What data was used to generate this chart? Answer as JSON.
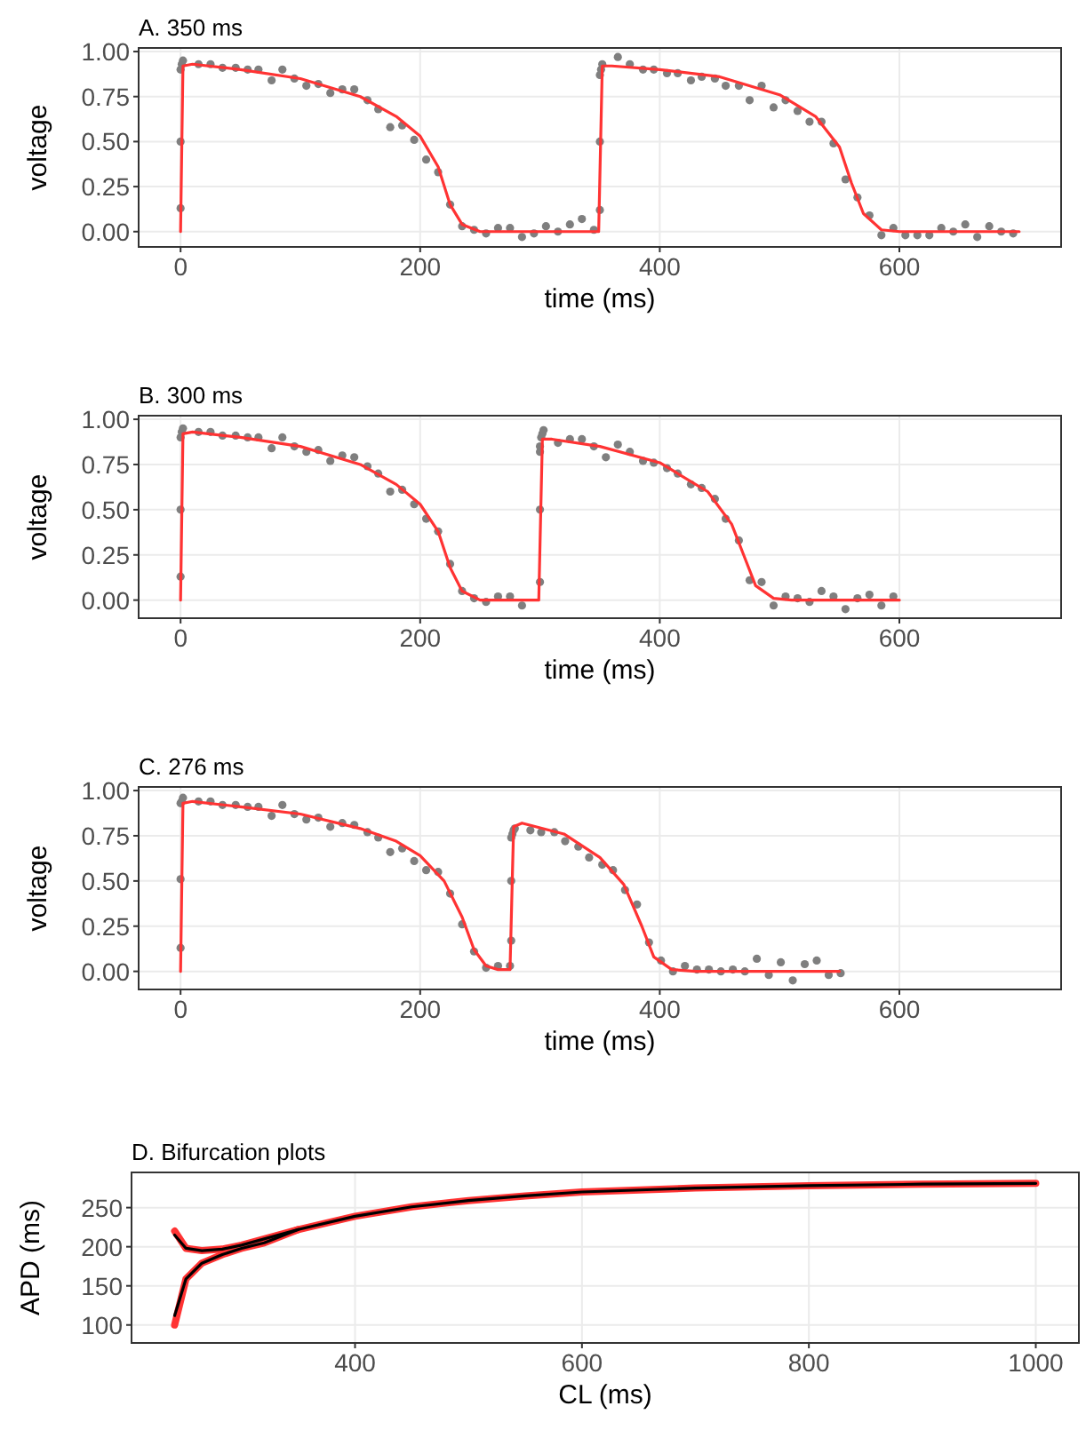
{
  "chart_data": [
    {
      "type": "scatter",
      "title": "A. 350 ms",
      "xlabel": "time (ms)",
      "ylabel": "voltage",
      "xlim": [
        -35,
        735
      ],
      "ylim": [
        -0.085,
        1.02
      ],
      "xticks": [
        0,
        200,
        400,
        600
      ],
      "yticks": [
        {
          "value": 0,
          "label": "0.00"
        },
        {
          "value": 0.25,
          "label": "0.25"
        },
        {
          "value": 0.5,
          "label": "0.50"
        },
        {
          "value": 0.75,
          "label": "0.75"
        },
        {
          "value": 1,
          "label": "1.00"
        }
      ],
      "grid": true,
      "series": [
        {
          "type": "scatter",
          "color": "#7f7f7f",
          "x": [
            0,
            0,
            0,
            1,
            2,
            15,
            25,
            35,
            46,
            56,
            65,
            76,
            85,
            95,
            105,
            115,
            125,
            135,
            145,
            156,
            165,
            175,
            185,
            195,
            205,
            215,
            225,
            235,
            245,
            255,
            265,
            275,
            285,
            295,
            305,
            315,
            325,
            335,
            345,
            350,
            350,
            350,
            351,
            352,
            365,
            375,
            386,
            395,
            406,
            415,
            426,
            435,
            446,
            455,
            466,
            475,
            485,
            495,
            505,
            515,
            525,
            535,
            545,
            555,
            565,
            575,
            585,
            595,
            605,
            615,
            625,
            635,
            645,
            655,
            665,
            675,
            685,
            695
          ],
          "values": [
            0.13,
            0.5,
            0.9,
            0.93,
            0.95,
            0.93,
            0.93,
            0.91,
            0.91,
            0.9,
            0.9,
            0.84,
            0.9,
            0.85,
            0.81,
            0.82,
            0.77,
            0.79,
            0.79,
            0.73,
            0.68,
            0.58,
            0.59,
            0.51,
            0.4,
            0.33,
            0.15,
            0.03,
            0.01,
            -0.01,
            0.02,
            0.02,
            -0.03,
            -0.01,
            0.03,
            0,
            0.04,
            0.07,
            0.01,
            0.12,
            0.5,
            0.87,
            0.9,
            0.93,
            0.97,
            0.93,
            0.9,
            0.9,
            0.88,
            0.88,
            0.84,
            0.86,
            0.85,
            0.81,
            0.81,
            0.73,
            0.81,
            0.69,
            0.73,
            0.67,
            0.61,
            0.61,
            0.49,
            0.29,
            0.19,
            0.09,
            -0.02,
            0.02,
            -0.02,
            -0.02,
            -0.02,
            0.02,
            0,
            0.04,
            -0.03,
            0.03,
            0,
            -0.01
          ]
        },
        {
          "type": "line",
          "color": "#ff3333",
          "x": [
            0,
            2,
            10,
            50,
            100,
            150,
            180,
            200,
            215,
            225,
            235,
            250,
            349,
            352,
            360,
            400,
            450,
            500,
            530,
            550,
            560,
            570,
            585,
            600,
            700
          ],
          "values": [
            0,
            0.92,
            0.93,
            0.9,
            0.85,
            0.75,
            0.64,
            0.53,
            0.36,
            0.15,
            0.04,
            0,
            0,
            0.92,
            0.92,
            0.9,
            0.86,
            0.76,
            0.64,
            0.47,
            0.27,
            0.1,
            0.01,
            0,
            0
          ]
        }
      ]
    },
    {
      "type": "scatter",
      "title": "B. 300 ms",
      "xlabel": "time (ms)",
      "ylabel": "voltage",
      "xlim": [
        -35,
        735
      ],
      "ylim": [
        -0.1,
        1.02
      ],
      "xticks": [
        0,
        200,
        400,
        600
      ],
      "yticks": [
        {
          "value": 0,
          "label": "0.00"
        },
        {
          "value": 0.25,
          "label": "0.25"
        },
        {
          "value": 0.5,
          "label": "0.50"
        },
        {
          "value": 0.75,
          "label": "0.75"
        },
        {
          "value": 1,
          "label": "1.00"
        }
      ],
      "grid": true,
      "series": [
        {
          "type": "scatter",
          "color": "#7f7f7f",
          "x": [
            0,
            0,
            0,
            1,
            2,
            15,
            25,
            35,
            46,
            56,
            65,
            76,
            85,
            95,
            105,
            115,
            125,
            135,
            145,
            156,
            165,
            175,
            185,
            195,
            205,
            215,
            225,
            235,
            245,
            255,
            265,
            275,
            285,
            300,
            300,
            300,
            300,
            301,
            302,
            303,
            315,
            325,
            335,
            345,
            355,
            365,
            375,
            386,
            395,
            406,
            415,
            426,
            435,
            446,
            455,
            466,
            475,
            485,
            495,
            505,
            515,
            525,
            535,
            545,
            555,
            565,
            575,
            585,
            595
          ],
          "values": [
            0.13,
            0.5,
            0.9,
            0.93,
            0.95,
            0.93,
            0.93,
            0.91,
            0.91,
            0.9,
            0.9,
            0.84,
            0.9,
            0.85,
            0.82,
            0.83,
            0.77,
            0.8,
            0.79,
            0.74,
            0.7,
            0.6,
            0.61,
            0.53,
            0.45,
            0.38,
            0.2,
            0.05,
            0.01,
            -0.01,
            0.02,
            0.02,
            -0.03,
            0.1,
            0.5,
            0.82,
            0.85,
            0.9,
            0.92,
            0.94,
            0.87,
            0.89,
            0.89,
            0.85,
            0.79,
            0.86,
            0.82,
            0.77,
            0.76,
            0.73,
            0.7,
            0.64,
            0.62,
            0.56,
            0.45,
            0.33,
            0.11,
            0.1,
            -0.03,
            0.02,
            0.01,
            -0.01,
            0.05,
            0.02,
            -0.05,
            0.01,
            0.03,
            -0.03,
            0.02
          ]
        },
        {
          "type": "line",
          "color": "#ff3333",
          "x": [
            0,
            2,
            10,
            50,
            100,
            150,
            180,
            200,
            215,
            225,
            235,
            250,
            299,
            302,
            310,
            350,
            400,
            440,
            460,
            470,
            480,
            495,
            510,
            600
          ],
          "values": [
            0,
            0.92,
            0.93,
            0.9,
            0.85,
            0.75,
            0.64,
            0.53,
            0.38,
            0.18,
            0.05,
            0,
            0,
            0.89,
            0.89,
            0.85,
            0.76,
            0.6,
            0.42,
            0.25,
            0.08,
            0.01,
            0,
            0
          ]
        }
      ]
    },
    {
      "type": "scatter",
      "title": "C. 276 ms",
      "xlabel": "time (ms)",
      "ylabel": "voltage",
      "xlim": [
        -35,
        735
      ],
      "ylim": [
        -0.1,
        1.02
      ],
      "xticks": [
        0,
        200,
        400,
        600
      ],
      "yticks": [
        {
          "value": 0,
          "label": "0.00"
        },
        {
          "value": 0.25,
          "label": "0.25"
        },
        {
          "value": 0.5,
          "label": "0.50"
        },
        {
          "value": 0.75,
          "label": "0.75"
        },
        {
          "value": 1,
          "label": "1.00"
        }
      ],
      "grid": true,
      "series": [
        {
          "type": "scatter",
          "color": "#7f7f7f",
          "x": [
            0,
            0,
            0,
            1,
            2,
            15,
            25,
            35,
            46,
            56,
            65,
            76,
            85,
            95,
            105,
            115,
            125,
            135,
            145,
            156,
            165,
            175,
            185,
            195,
            205,
            215,
            225,
            235,
            245,
            255,
            265,
            275,
            276,
            276,
            276,
            277,
            278,
            279,
            292,
            301,
            312,
            321,
            332,
            341,
            352,
            361,
            371,
            381,
            391,
            401,
            411,
            421,
            431,
            441,
            451,
            461,
            471,
            481,
            491,
            501,
            511,
            521,
            531,
            541,
            551
          ],
          "values": [
            0.13,
            0.51,
            0.93,
            0.94,
            0.96,
            0.94,
            0.94,
            0.92,
            0.92,
            0.91,
            0.91,
            0.86,
            0.92,
            0.87,
            0.84,
            0.85,
            0.8,
            0.82,
            0.81,
            0.77,
            0.74,
            0.66,
            0.68,
            0.61,
            0.56,
            0.55,
            0.43,
            0.26,
            0.11,
            0.02,
            0.03,
            0.03,
            0.17,
            0.5,
            0.74,
            0.76,
            0.78,
            0.79,
            0.78,
            0.77,
            0.77,
            0.72,
            0.69,
            0.63,
            0.59,
            0.56,
            0.45,
            0.37,
            0.16,
            0.06,
            0,
            0.03,
            0.01,
            0.01,
            0,
            0.01,
            0,
            0.07,
            -0.02,
            0.05,
            -0.05,
            0.04,
            0.06,
            -0.02,
            -0.01
          ]
        },
        {
          "type": "line",
          "color": "#ff3333",
          "x": [
            0,
            2,
            10,
            50,
            100,
            150,
            180,
            200,
            220,
            235,
            245,
            255,
            265,
            275,
            278,
            285,
            320,
            350,
            370,
            385,
            395,
            410,
            430,
            550
          ],
          "values": [
            0,
            0.93,
            0.94,
            0.91,
            0.87,
            0.79,
            0.72,
            0.64,
            0.5,
            0.3,
            0.12,
            0.03,
            0.01,
            0.01,
            0.8,
            0.82,
            0.76,
            0.63,
            0.48,
            0.25,
            0.08,
            0.01,
            0,
            0
          ]
        }
      ]
    },
    {
      "type": "line",
      "title": "D. Bifurcation plots",
      "xlabel": "CL (ms)",
      "ylabel": "APD (ms)",
      "xlim": [
        203,
        1038
      ],
      "ylim": [
        77,
        295
      ],
      "xticks": [
        400,
        600,
        800,
        1000
      ],
      "yticks": [
        100,
        150,
        200,
        250
      ],
      "grid": true,
      "series": [
        {
          "type": "line",
          "color": "#ff3333",
          "x": [
            241,
            251,
            265,
            283,
            300,
            350,
            400,
            450,
            500,
            550,
            600,
            700,
            800,
            900,
            1000
          ],
          "values": [
            220,
            198,
            195,
            197,
            202,
            222,
            239,
            251,
            259,
            265,
            270,
            275,
            278,
            280,
            281
          ]
        },
        {
          "type": "line",
          "color": "#ff3333",
          "x": [
            241,
            251,
            265,
            283,
            300,
            320,
            350
          ],
          "values": [
            100,
            159,
            179,
            190,
            198,
            205,
            222
          ]
        },
        {
          "type": "line",
          "color": "#000000",
          "x": [
            241,
            251,
            265,
            283,
            300,
            350,
            400,
            450,
            500,
            550,
            600,
            700,
            800,
            900,
            1000
          ],
          "values": [
            215,
            198,
            195,
            197,
            202,
            222,
            239,
            251,
            259,
            265,
            270,
            275,
            278,
            280,
            281
          ]
        },
        {
          "type": "line",
          "color": "#000000",
          "x": [
            241,
            251,
            265,
            283,
            300,
            320,
            350
          ],
          "values": [
            112,
            159,
            179,
            190,
            198,
            205,
            222
          ]
        }
      ]
    }
  ]
}
